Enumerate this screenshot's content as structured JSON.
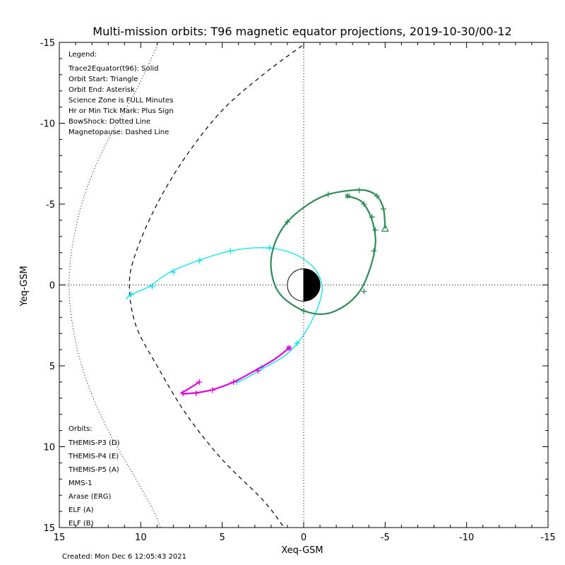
{
  "title": "Multi-mission orbits: T96 magnetic equator projections, 2019-10-30/00-12",
  "created": "Created: Mon Dec  6 12:05:43 2021",
  "legend": {
    "heading": "Legend:",
    "lines": [
      "Trace2Equator(t96): Solid",
      "Orbit Start: Triangle",
      "Orbit End: Asterisk",
      "Science Zone is FULL Minutes",
      "Hr or Min Tick Mark: Plus Sign",
      "BowShock: Dotted Line",
      "Magnetopause: Dashed Line"
    ]
  },
  "orbits_legend": {
    "heading": "Orbits:",
    "items": [
      {
        "label": "THEMIS-P3 (D)",
        "color": "#00e5ee"
      },
      {
        "label": "THEMIS-P4 (E)",
        "color": "#0000cc"
      },
      {
        "label": "THEMIS-P5 (A)",
        "color": "#e000e0"
      },
      {
        "label": "MMS-1",
        "color": "#000000"
      },
      {
        "label": "Arase (ERG)",
        "color": "#2e8b57"
      },
      {
        "label": "ELF (A)",
        "color": "#1e90ff"
      },
      {
        "label": "ELF (B)",
        "color": "#cc0000"
      }
    ]
  },
  "chart_data": {
    "type": "line",
    "title": "Multi-mission orbits: T96 magnetic equator projections, 2019-10-30/00-12",
    "xlabel": "Xeq-GSM",
    "ylabel": "Yeq-GSM",
    "xlim": [
      15,
      -15
    ],
    "ylim": [
      15,
      -15
    ],
    "xticks": [
      15,
      10,
      5,
      0,
      -5,
      -10,
      -15
    ],
    "yticks": [
      -15,
      -10,
      -5,
      0,
      5,
      10,
      15
    ],
    "xtick_labels": [
      "15",
      "10",
      "5",
      "0",
      "-5",
      "-10",
      "-15"
    ],
    "ytick_labels": [
      "-15",
      "-10",
      "-5",
      "0",
      "5",
      "10",
      "15"
    ],
    "earth": {
      "radius": 1
    },
    "bow_shock": {
      "style": "dotted",
      "color": "#000000",
      "points": [
        [
          8.9,
          -15
        ],
        [
          10.3,
          -12
        ],
        [
          12.0,
          -9.0
        ],
        [
          13.3,
          -6.0
        ],
        [
          14.1,
          -3.0
        ],
        [
          14.4,
          0
        ],
        [
          14.1,
          3.0
        ],
        [
          13.3,
          6.0
        ],
        [
          12.0,
          9.0
        ],
        [
          10.3,
          12
        ],
        [
          9.2,
          14.0
        ],
        [
          8.8,
          15
        ]
      ]
    },
    "magnetopause": {
      "style": "dashed",
      "color": "#000000",
      "points": [
        [
          0.1,
          -14.8
        ],
        [
          2.5,
          -13.0
        ],
        [
          5.0,
          -10.8
        ],
        [
          7.2,
          -8.0
        ],
        [
          9.0,
          -5.0
        ],
        [
          10.3,
          -2.0
        ],
        [
          10.7,
          0
        ],
        [
          10.3,
          2.5
        ],
        [
          9.0,
          5.0
        ],
        [
          7.2,
          8.0
        ],
        [
          5.0,
          10.8
        ],
        [
          2.5,
          13.3
        ],
        [
          1.2,
          15.0
        ]
      ]
    },
    "series": [
      {
        "name": "THEMIS-P3 (D)",
        "color": "#00e5ee",
        "points": [
          [
            10.9,
            0.9
          ],
          [
            10.6,
            0.6
          ],
          [
            9.5,
            0.1
          ],
          [
            8.2,
            -0.8
          ],
          [
            6.5,
            -1.5
          ],
          [
            4.5,
            -2.1
          ],
          [
            2.5,
            -2.3
          ],
          [
            0.8,
            -2.0
          ],
          [
            -0.5,
            -1.2
          ],
          [
            -1.1,
            -0.1
          ],
          [
            -1.0,
            1.0
          ],
          [
            -0.4,
            2.4
          ],
          [
            0.3,
            3.5
          ],
          [
            1.2,
            4.4
          ],
          [
            2.4,
            5.1
          ],
          [
            3.6,
            5.8
          ],
          [
            4.1,
            6.0
          ]
        ],
        "plus_marks": [
          [
            10.6,
            0.6
          ],
          [
            9.3,
            0.1
          ],
          [
            8.0,
            -0.8
          ],
          [
            6.4,
            -1.5
          ],
          [
            4.5,
            -2.1
          ],
          [
            2.1,
            -2.3
          ],
          [
            0.4,
            3.6
          ],
          [
            2.6,
            5.1
          ],
          [
            4.1,
            6.0
          ]
        ],
        "end": [
          0.9,
          3.9
        ]
      },
      {
        "name": "THEMIS-P5 (A)",
        "color": "#e000e0",
        "points": [
          [
            6.4,
            6.0
          ],
          [
            7.2,
            6.5
          ],
          [
            7.5,
            6.7
          ],
          [
            6.9,
            6.7
          ],
          [
            5.7,
            6.5
          ],
          [
            4.3,
            6.0
          ],
          [
            3.0,
            5.3
          ],
          [
            1.8,
            4.6
          ],
          [
            0.9,
            3.9
          ]
        ],
        "plus_marks": [
          [
            6.4,
            6.0
          ],
          [
            7.4,
            6.7
          ],
          [
            6.6,
            6.7
          ],
          [
            5.6,
            6.5
          ],
          [
            4.3,
            6.0
          ],
          [
            2.8,
            5.3
          ]
        ],
        "end": [
          0.9,
          3.9
        ]
      },
      {
        "name": "Arase (ERG)",
        "color": "#2e8b57",
        "start": [
          -5.0,
          -3.5
        ],
        "end": [
          -2.7,
          -5.5
        ],
        "points": [
          [
            -5.0,
            -3.5
          ],
          [
            -4.9,
            -4.7
          ],
          [
            -4.5,
            -5.5
          ],
          [
            -3.8,
            -5.85
          ],
          [
            -2.9,
            -5.85
          ],
          [
            -1.5,
            -5.6
          ],
          [
            -0.3,
            -5.0
          ],
          [
            1.0,
            -3.9
          ],
          [
            1.8,
            -2.5
          ],
          [
            2.0,
            -1.0
          ],
          [
            1.5,
            0.5
          ],
          [
            0.2,
            1.5
          ],
          [
            -1.2,
            1.8
          ],
          [
            -2.5,
            1.3
          ],
          [
            -3.5,
            0.3
          ],
          [
            -4.1,
            -1.1
          ],
          [
            -4.4,
            -2.5
          ],
          [
            -4.3,
            -3.6
          ],
          [
            -4.0,
            -4.5
          ],
          [
            -3.5,
            -5.2
          ],
          [
            -2.7,
            -5.5
          ]
        ],
        "plus_marks": [
          [
            -4.9,
            -4.7
          ],
          [
            -4.5,
            -5.5
          ],
          [
            -3.4,
            -5.85
          ],
          [
            -1.5,
            -5.6
          ],
          [
            1.0,
            -3.9
          ],
          [
            0.0,
            1.6
          ],
          [
            -3.7,
            0.4
          ],
          [
            -4.3,
            -2.1
          ],
          [
            -4.4,
            -3.4
          ],
          [
            -4.2,
            -4.2
          ],
          [
            -3.7,
            -5.0
          ]
        ]
      }
    ]
  }
}
